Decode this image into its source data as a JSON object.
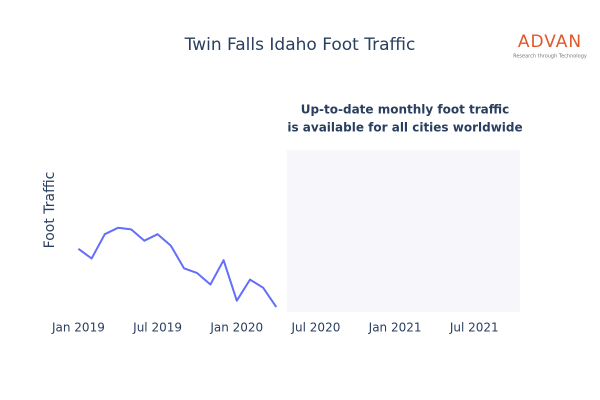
{
  "chart_data": {
    "type": "line",
    "title": "Twin Falls Idaho Foot Traffic",
    "ylabel": "Foot Traffic",
    "annotation": [
      "Up-to-date monthly foot traffic",
      "is available for all cities worldwide"
    ],
    "logo": {
      "name": "ADVAN",
      "tagline": "Research through Technology"
    },
    "x": [
      "2019-01",
      "2019-02",
      "2019-03",
      "2019-04",
      "2019-05",
      "2019-06",
      "2019-07",
      "2019-08",
      "2019-09",
      "2019-10",
      "2019-11",
      "2019-12",
      "2020-01",
      "2020-02",
      "2020-03",
      "2020-04"
    ],
    "series": [
      {
        "name": "Foot Traffic",
        "color": "#636efa",
        "values": [
          39,
          33,
          48,
          52,
          51,
          44,
          48,
          41,
          27,
          24,
          17,
          32,
          7,
          20,
          15,
          3
        ]
      }
    ],
    "xlim": [
      "2018-10-15",
      "2021-10-15"
    ],
    "xticks": [
      {
        "value": "2019-01",
        "label": "Jan 2019"
      },
      {
        "value": "2019-07",
        "label": "Jul 2019"
      },
      {
        "value": "2020-01",
        "label": "Jan 2020"
      },
      {
        "value": "2020-07",
        "label": "Jul 2020"
      },
      {
        "value": "2021-01",
        "label": "Jan 2021"
      },
      {
        "value": "2021-07",
        "label": "Jul 2021"
      }
    ],
    "ylim": [
      0,
      100
    ]
  }
}
